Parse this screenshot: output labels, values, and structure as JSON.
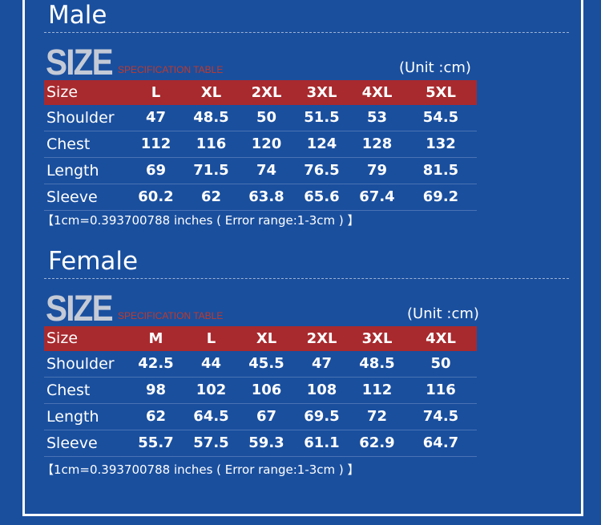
{
  "sections": [
    {
      "title": "Male",
      "size_word": "SIZE",
      "spec": "SPECIFICATION TABLE",
      "unit": "(Unit :cm)",
      "table": {
        "header": [
          "Size",
          "L",
          "XL",
          "2XL",
          "3XL",
          "4XL",
          "5XL"
        ],
        "rows": [
          [
            "Shoulder",
            47,
            48.5,
            50,
            51.5,
            53,
            54.5
          ],
          [
            "Chest",
            112,
            116,
            120,
            124,
            128,
            132
          ],
          [
            "Length",
            69,
            71.5,
            74,
            76.5,
            79,
            81.5
          ],
          [
            "Sleeve",
            60.2,
            62,
            63.8,
            65.6,
            67.4,
            69.2
          ]
        ]
      },
      "note": "【1cm=0.393700788 inches ( Error range:1-3cm ) 】"
    },
    {
      "title": "Female",
      "size_word": "SIZE",
      "spec": "SPECIFICATION TABLE",
      "unit": "(Unit :cm)",
      "table": {
        "header": [
          "Size",
          "M",
          "L",
          "XL",
          "2XL",
          "3XL",
          "4XL"
        ],
        "rows": [
          [
            "Shoulder",
            42.5,
            44,
            45.5,
            47,
            48.5,
            50
          ],
          [
            "Chest",
            98,
            102,
            106,
            108,
            112,
            116
          ],
          [
            "Length",
            62,
            64.5,
            67,
            69.5,
            72,
            74.5
          ],
          [
            "Sleeve",
            55.7,
            57.5,
            59.3,
            61.1,
            62.9,
            64.7
          ]
        ]
      },
      "note": "【1cm=0.393700788 inches ( Error range:1-3cm ) 】"
    }
  ]
}
